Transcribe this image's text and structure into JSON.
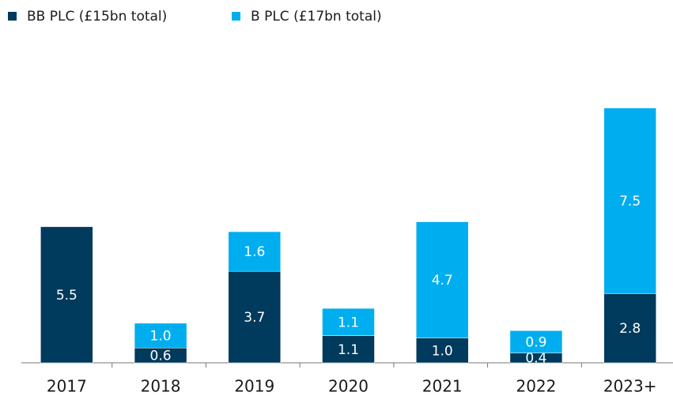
{
  "chart_data": {
    "type": "stacked_bar",
    "categories": [
      "2017",
      "2018",
      "2019",
      "2020",
      "2021",
      "2022",
      "2023+"
    ],
    "series": [
      {
        "name": "BB PLC (£15bn total)",
        "color": "#003a5c",
        "values": [
          5.5,
          0.6,
          3.7,
          1.1,
          1.0,
          0.4,
          2.8
        ],
        "value_labels": [
          "5.5",
          "0.6",
          "3.7",
          "1.1",
          "1.0",
          "0.4",
          "2.8"
        ]
      },
      {
        "name": "B PLC (£17bn total)",
        "color": "#00aeef",
        "values": [
          null,
          1.0,
          1.6,
          1.1,
          4.7,
          0.9,
          7.5
        ],
        "value_labels": [
          null,
          "1.0",
          "1.6",
          "1.1",
          "4.7",
          "0.9",
          "7.5"
        ]
      }
    ],
    "ylim": [
      0,
      14
    ],
    "legend": "top-left"
  }
}
